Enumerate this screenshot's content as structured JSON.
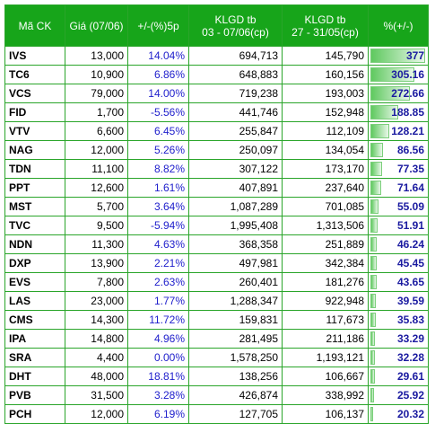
{
  "colors": {
    "header_bg": "#17a51a",
    "border": "#2aa52a",
    "pct_text": "#2020cc",
    "bar": "#5fc95f"
  },
  "headers": {
    "code": "Mã CK",
    "price": "Giá (07/06)",
    "change": "+/-(%)5p",
    "vol_now_line1": "KLGD tb",
    "vol_now_line2": "03 - 07/06(cp)",
    "vol_prev_line1": "KLGD tb",
    "vol_prev_line2": "27 - 31/05(cp)",
    "diff": "%(+/-)"
  },
  "rows": [
    {
      "code": "IVS",
      "price": "13,000",
      "change": "14.04%",
      "vol_now": "694,713",
      "vol_prev": "145,790",
      "diff": "377",
      "diff_value": 377
    },
    {
      "code": "TC6",
      "price": "10,900",
      "change": "6.86%",
      "vol_now": "648,883",
      "vol_prev": "160,156",
      "diff": "305.16",
      "diff_value": 305.16
    },
    {
      "code": "VCS",
      "price": "79,000",
      "change": "14.00%",
      "vol_now": "719,238",
      "vol_prev": "193,003",
      "diff": "272.66",
      "diff_value": 272.66
    },
    {
      "code": "FID",
      "price": "1,700",
      "change": "-5.56%",
      "vol_now": "441,746",
      "vol_prev": "152,948",
      "diff": "188.85",
      "diff_value": 188.85
    },
    {
      "code": "VTV",
      "price": "6,600",
      "change": "6.45%",
      "vol_now": "255,847",
      "vol_prev": "112,109",
      "diff": "128.21",
      "diff_value": 128.21
    },
    {
      "code": "NAG",
      "price": "12,000",
      "change": "5.26%",
      "vol_now": "250,097",
      "vol_prev": "134,054",
      "diff": "86.56",
      "diff_value": 86.56
    },
    {
      "code": "TDN",
      "price": "11,100",
      "change": "8.82%",
      "vol_now": "307,122",
      "vol_prev": "173,170",
      "diff": "77.35",
      "diff_value": 77.35
    },
    {
      "code": "PPT",
      "price": "12,600",
      "change": "1.61%",
      "vol_now": "407,891",
      "vol_prev": "237,640",
      "diff": "71.64",
      "diff_value": 71.64
    },
    {
      "code": "MST",
      "price": "5,700",
      "change": "3.64%",
      "vol_now": "1,087,289",
      "vol_prev": "701,085",
      "diff": "55.09",
      "diff_value": 55.09
    },
    {
      "code": "TVC",
      "price": "9,500",
      "change": "-5.94%",
      "vol_now": "1,995,408",
      "vol_prev": "1,313,506",
      "diff": "51.91",
      "diff_value": 51.91
    },
    {
      "code": "NDN",
      "price": "11,300",
      "change": "4.63%",
      "vol_now": "368,358",
      "vol_prev": "251,889",
      "diff": "46.24",
      "diff_value": 46.24
    },
    {
      "code": "DXP",
      "price": "13,900",
      "change": "2.21%",
      "vol_now": "497,981",
      "vol_prev": "342,384",
      "diff": "45.45",
      "diff_value": 45.45
    },
    {
      "code": "EVS",
      "price": "7,800",
      "change": "2.63%",
      "vol_now": "260,401",
      "vol_prev": "181,276",
      "diff": "43.65",
      "diff_value": 43.65
    },
    {
      "code": "LAS",
      "price": "23,000",
      "change": "1.77%",
      "vol_now": "1,288,347",
      "vol_prev": "922,948",
      "diff": "39.59",
      "diff_value": 39.59
    },
    {
      "code": "CMS",
      "price": "14,300",
      "change": "11.72%",
      "vol_now": "159,831",
      "vol_prev": "117,673",
      "diff": "35.83",
      "diff_value": 35.83
    },
    {
      "code": "IPA",
      "price": "14,800",
      "change": "4.96%",
      "vol_now": "281,495",
      "vol_prev": "211,186",
      "diff": "33.29",
      "diff_value": 33.29
    },
    {
      "code": "SRA",
      "price": "4,400",
      "change": "0.00%",
      "vol_now": "1,578,250",
      "vol_prev": "1,193,121",
      "diff": "32.28",
      "diff_value": 32.28
    },
    {
      "code": "DHT",
      "price": "48,000",
      "change": "18.81%",
      "vol_now": "138,256",
      "vol_prev": "106,667",
      "diff": "29.61",
      "diff_value": 29.61
    },
    {
      "code": "PVB",
      "price": "31,500",
      "change": "3.28%",
      "vol_now": "426,874",
      "vol_prev": "338,992",
      "diff": "25.92",
      "diff_value": 25.92
    },
    {
      "code": "PCH",
      "price": "12,000",
      "change": "6.19%",
      "vol_now": "127,705",
      "vol_prev": "106,137",
      "diff": "20.32",
      "diff_value": 20.32
    }
  ]
}
